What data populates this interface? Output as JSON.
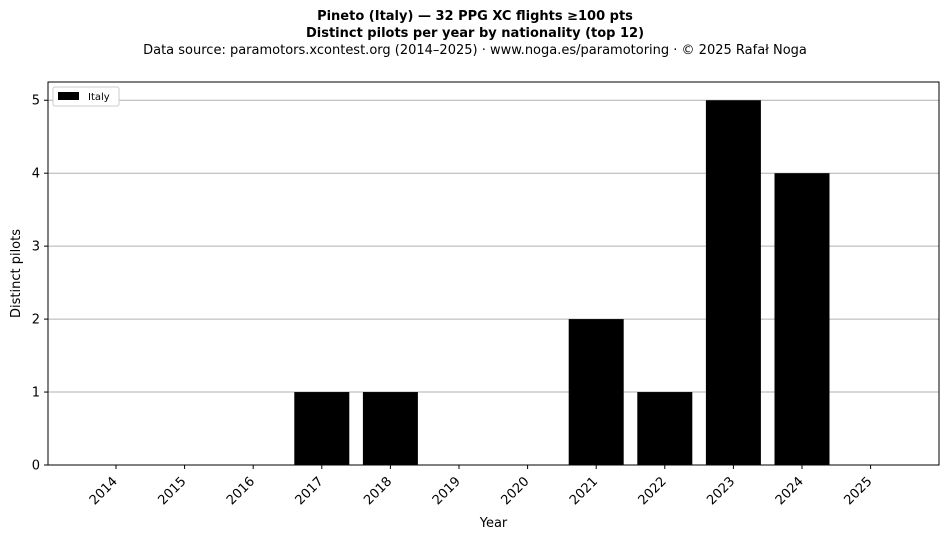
{
  "header": {
    "title_line1": "Pineto (Italy)  —  32 PPG XC flights ≥100 pts",
    "title_line2": "Distinct pilots per year by nationality (top 12)",
    "source_line": "Data source: paramotors.xcontest.org (2014–2025)  ·  www.noga.es/paramotoring  ·  © 2025 Rafał Noga"
  },
  "chart_data": {
    "type": "bar",
    "title": "Pineto (Italy)  —  32 PPG XC flights ≥100 pts",
    "subtitle": "Distinct pilots per year by nationality (top 12)",
    "xlabel": "Year",
    "ylabel": "Distinct pilots",
    "categories": [
      "2014",
      "2015",
      "2016",
      "2017",
      "2018",
      "2019",
      "2020",
      "2021",
      "2022",
      "2023",
      "2024",
      "2025"
    ],
    "series": [
      {
        "name": "Italy",
        "color": "#000000",
        "values": [
          0,
          0,
          0,
          1,
          1,
          0,
          0,
          2,
          1,
          5,
          4,
          0
        ]
      }
    ],
    "ylim": [
      0,
      5.25
    ],
    "yticks": [
      0,
      1,
      2,
      3,
      4,
      5
    ],
    "grid": "y-major",
    "legend_position": "top-left",
    "colors": {
      "bar": "#000000",
      "grid": "#b0b0b0",
      "axis": "#000000"
    }
  }
}
